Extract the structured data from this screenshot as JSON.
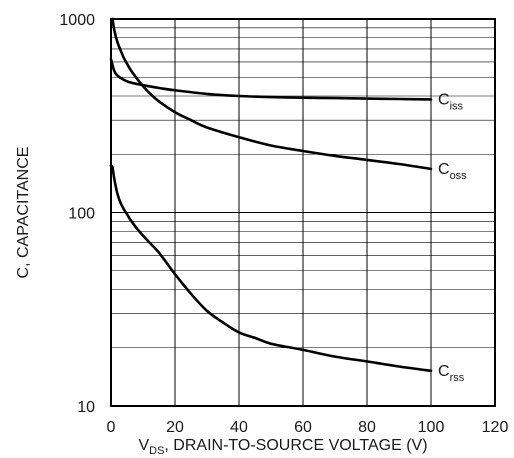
{
  "chart_data": {
    "type": "line",
    "title": "",
    "xlabel": {
      "main": "V",
      "sub": "DS",
      "rest": ", DRAIN-TO-SOURCE VOLTAGE (V)"
    },
    "ylabel": "C, CAPACITANCE",
    "x_ticks": [
      "0",
      "20",
      "40",
      "60",
      "80",
      "100",
      "120"
    ],
    "x_tick_values": [
      0,
      20,
      40,
      60,
      80,
      100,
      120
    ],
    "y_ticks": [
      "10",
      "100",
      "1000"
    ],
    "y_tick_values": [
      10,
      100,
      1000
    ],
    "xlim": [
      0,
      120
    ],
    "ylim": [
      10,
      1000
    ],
    "yscale": "log",
    "grid": true,
    "series": [
      {
        "name": "Ciss",
        "label_main": "C",
        "label_sub": "iss",
        "x": [
          0,
          1,
          2,
          4,
          6,
          10,
          15,
          20,
          30,
          40,
          50,
          60,
          70,
          80,
          90,
          100
        ],
        "y": [
          620,
          540,
          510,
          485,
          470,
          455,
          440,
          428,
          410,
          400,
          395,
          392,
          390,
          388,
          386,
          384
        ]
      },
      {
        "name": "Coss",
        "label_main": "C",
        "label_sub": "oss",
        "x": [
          0.5,
          1,
          2,
          3,
          4,
          6,
          8,
          10,
          12,
          15,
          20,
          25,
          30,
          40,
          50,
          60,
          70,
          80,
          90,
          100
        ],
        "y": [
          1000,
          880,
          760,
          690,
          630,
          550,
          495,
          450,
          415,
          375,
          330,
          300,
          275,
          245,
          222,
          208,
          196,
          187,
          178,
          168
        ]
      },
      {
        "name": "Crss",
        "label_main": "C",
        "label_sub": "rss",
        "x": [
          0,
          0.5,
          1,
          2,
          3,
          4,
          5,
          6,
          8,
          10,
          12,
          15,
          20,
          25,
          30,
          35,
          40,
          45,
          50,
          60,
          70,
          80,
          90,
          100
        ],
        "y": [
          175,
          170,
          150,
          125,
          112,
          104,
          98,
          92,
          83,
          76,
          70,
          62,
          48,
          38,
          31,
          27,
          24,
          22.5,
          21,
          19.5,
          18,
          17,
          16,
          15.2
        ]
      }
    ]
  }
}
